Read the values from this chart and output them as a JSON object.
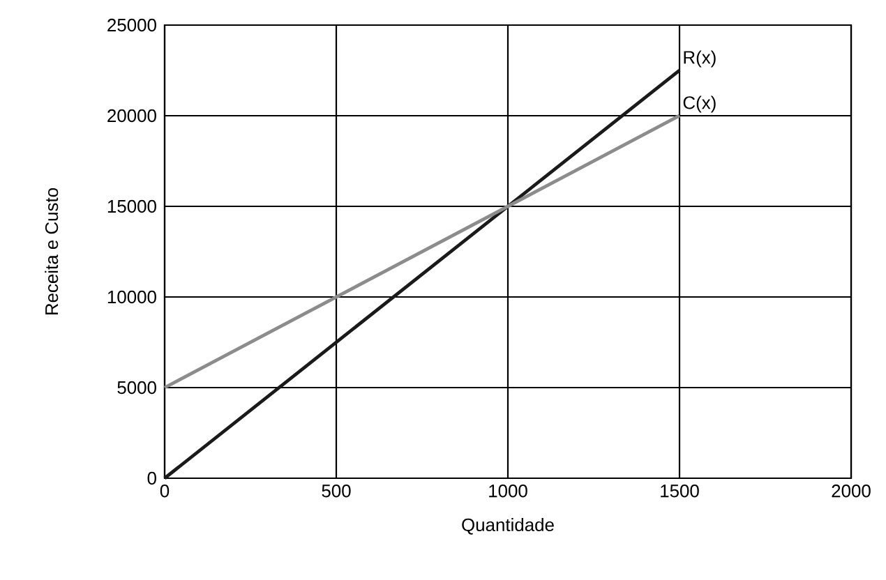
{
  "chart_data": {
    "type": "line",
    "xlabel": "Quantidade",
    "ylabel": "Receita e Custo",
    "x": [
      0,
      1500
    ],
    "series": [
      {
        "name": "R(x)",
        "color": "#1a1a1a",
        "values": [
          0,
          22500
        ]
      },
      {
        "name": "C(x)",
        "color": "#8c8c8c",
        "values": [
          5000,
          20000
        ]
      }
    ],
    "xlim": [
      0,
      2000
    ],
    "ylim": [
      0,
      25000
    ],
    "xticks": [
      0,
      500,
      1000,
      1500,
      2000
    ],
    "yticks": [
      0,
      5000,
      10000,
      15000,
      20000,
      25000
    ],
    "grid": true,
    "line_style": "solid"
  }
}
